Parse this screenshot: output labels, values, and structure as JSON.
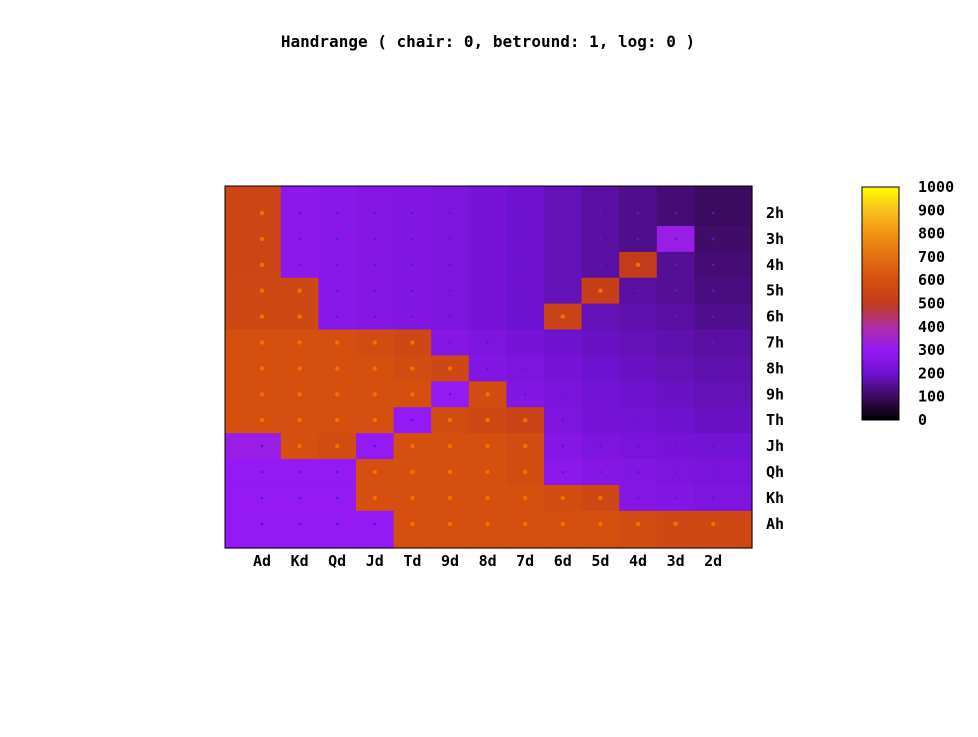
{
  "chart_data": {
    "type": "heatmap",
    "title": "Handrange ( chair: 0, betround: 1, log: 0 )",
    "x_categories": [
      "Ad",
      "Kd",
      "Qd",
      "Jd",
      "Td",
      "9d",
      "8d",
      "7d",
      "6d",
      "5d",
      "4d",
      "3d",
      "2d"
    ],
    "y_categories": [
      "2h",
      "3h",
      "4h",
      "5h",
      "6h",
      "7h",
      "8h",
      "9h",
      "Th",
      "Jh",
      "Qh",
      "Kh",
      "Ah"
    ],
    "colorbar": {
      "min": 0,
      "max": 1000,
      "ticks": [
        1000,
        900,
        800,
        700,
        600,
        500,
        400,
        300,
        200,
        100,
        0
      ],
      "palette": [
        "#000000",
        "#3a0b5e",
        "#6f12cf",
        "#9519f5",
        "#b02ea6",
        "#c23b1b",
        "#d5500f",
        "#e46f12",
        "#f29413",
        "#f9c01e",
        "#ffff00"
      ]
    },
    "values": [
      [
        550,
        280,
        270,
        260,
        250,
        240,
        220,
        200,
        180,
        160,
        140,
        120,
        100
      ],
      [
        550,
        280,
        270,
        260,
        250,
        240,
        220,
        200,
        180,
        160,
        140,
        320,
        110
      ],
      [
        550,
        280,
        270,
        260,
        250,
        240,
        220,
        200,
        180,
        160,
        500,
        150,
        120
      ],
      [
        560,
        560,
        270,
        260,
        250,
        240,
        220,
        200,
        180,
        520,
        160,
        150,
        130
      ],
      [
        560,
        560,
        270,
        260,
        250,
        240,
        220,
        200,
        540,
        180,
        170,
        160,
        140
      ],
      [
        600,
        600,
        600,
        580,
        560,
        260,
        240,
        220,
        200,
        190,
        180,
        170,
        160
      ],
      [
        600,
        600,
        600,
        600,
        580,
        560,
        250,
        240,
        220,
        200,
        190,
        180,
        170
      ],
      [
        600,
        600,
        600,
        600,
        600,
        300,
        580,
        250,
        230,
        210,
        200,
        190,
        180
      ],
      [
        600,
        600,
        600,
        600,
        300,
        580,
        560,
        540,
        240,
        220,
        210,
        200,
        190
      ],
      [
        320,
        600,
        580,
        300,
        600,
        600,
        600,
        580,
        260,
        240,
        230,
        220,
        210
      ],
      [
        300,
        300,
        300,
        600,
        600,
        600,
        600,
        580,
        280,
        260,
        250,
        240,
        230
      ],
      [
        300,
        300,
        300,
        600,
        600,
        600,
        600,
        600,
        580,
        560,
        260,
        250,
        240
      ],
      [
        300,
        300,
        300,
        300,
        600,
        600,
        600,
        600,
        600,
        600,
        580,
        560,
        560
      ]
    ]
  }
}
